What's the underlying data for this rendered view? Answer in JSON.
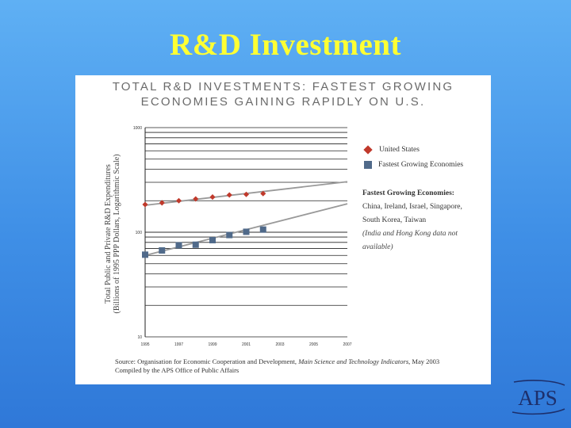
{
  "slide": {
    "title": "R&D Investment"
  },
  "chart_data": {
    "type": "scatter",
    "title_lines": [
      "TOTAL R&D INVESTMENTS: FASTEST GROWING",
      "ECONOMIES GAINING RAPIDLY ON U.S."
    ],
    "ylabel_lines": [
      "Total Public and Private R&D Expenditures",
      "(Billions of 1995 PPP Dollars, Logarithmic Scale)"
    ],
    "xlabel": "",
    "x_ticks": [
      "1995",
      "1997",
      "1999",
      "2001",
      "2003",
      "2005",
      "2007"
    ],
    "y_ticks": [
      "10",
      "100",
      "1000"
    ],
    "y_scale": "log",
    "ylim": [
      10,
      1000
    ],
    "xlim": [
      1995,
      2007
    ],
    "series": [
      {
        "name": "United States",
        "marker": "diamond",
        "color": "#c0392b",
        "x": [
          1995,
          1996,
          1997,
          1998,
          1999,
          2000,
          2001,
          2002
        ],
        "y": [
          184,
          191,
          200,
          208,
          217,
          227,
          230,
          234
        ]
      },
      {
        "name": "Fastest Growing Economies",
        "marker": "square",
        "color": "#506a8a",
        "x": [
          1995,
          1996,
          1997,
          1998,
          1999,
          2000,
          2001,
          2002
        ],
        "y": [
          61,
          67,
          75,
          76,
          84,
          94,
          101,
          106
        ]
      }
    ],
    "trendlines": [
      {
        "x": [
          1995,
          2007
        ],
        "y": [
          181,
          304
        ],
        "color": "#999999"
      },
      {
        "x": [
          1995,
          2007
        ],
        "y": [
          60,
          187
        ],
        "color": "#999999"
      }
    ],
    "legend_position": "right",
    "grid": "horizontal"
  },
  "notes": {
    "heading": "Fastest Growing Economies:",
    "line1": "China, Ireland, Israel, Singapore,",
    "line2": "South Korea, Taiwan",
    "caveat1": "(India and Hong Kong data not",
    "caveat2": "available)"
  },
  "source": {
    "prefix": "Source: Organisation for Economic Cooperation and Development, ",
    "italic": "Main Science and Technology Indicators",
    "suffix": ", May 2003",
    "line2": "Compiled by the APS Office of Public Affairs"
  },
  "logo": {
    "text": "APS"
  },
  "colors": {
    "background": "#3f8fe6",
    "title": "#ffff33",
    "us": "#c0392b",
    "fge": "#506a8a"
  }
}
